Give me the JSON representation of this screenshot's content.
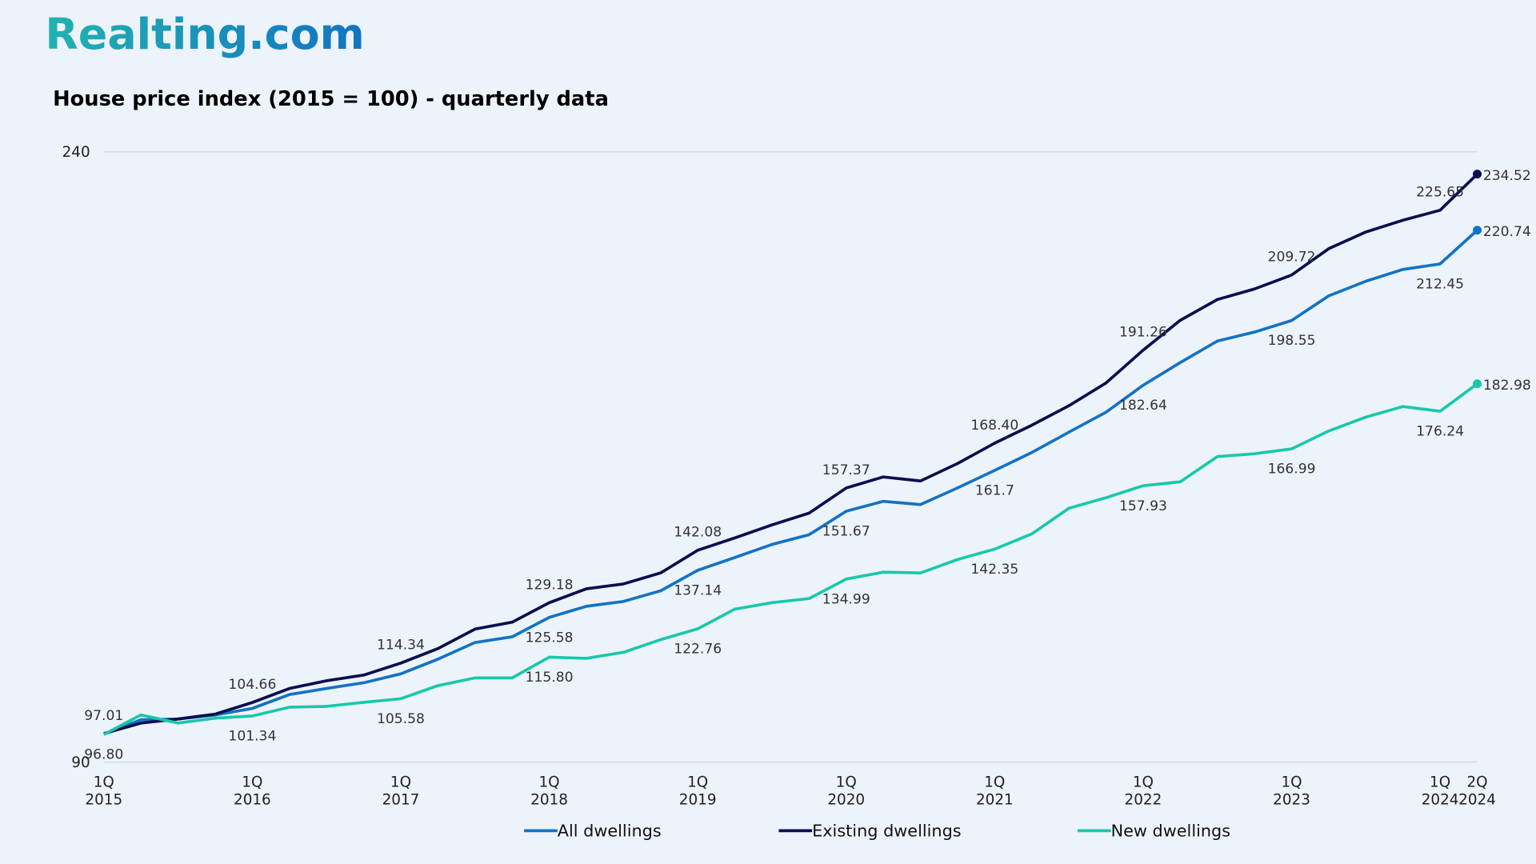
{
  "brand": "Realting.com",
  "chart_data": {
    "type": "line",
    "title": "House price index (2015 = 100) - quarterly data",
    "categories": [
      "1Q\n2015",
      null,
      null,
      null,
      "1Q\n2016",
      null,
      null,
      null,
      "1Q\n2017",
      null,
      null,
      null,
      "1Q\n2018",
      null,
      null,
      null,
      "1Q\n2019",
      null,
      null,
      null,
      "1Q\n2020",
      null,
      null,
      null,
      "1Q\n2021",
      null,
      null,
      null,
      "1Q\n2022",
      null,
      null,
      null,
      "1Q\n2023",
      null,
      null,
      null,
      "1Q\n2024",
      "2Q\n2024"
    ],
    "ylim": [
      90,
      240
    ],
    "yticks": [
      90,
      240
    ],
    "grid": true,
    "legend": "bottom",
    "series": [
      {
        "name": "All dwellings",
        "color": "#1273c4",
        "values": [
          96.9,
          100.4,
          100.6,
          101.6,
          103.2,
          106.6,
          108.1,
          109.5,
          111.7,
          115.3,
          119.4,
          120.8,
          125.58,
          128.3,
          129.5,
          132.1,
          137.14,
          140.3,
          143.5,
          145.9,
          151.67,
          154.1,
          153.3,
          157.4,
          161.7,
          166.1,
          171.1,
          176,
          182.64,
          188.2,
          193.5,
          195.7,
          198.55,
          204.6,
          208.2,
          211.1,
          212.45,
          220.74
        ],
        "value_labels": [
          null,
          null,
          null,
          null,
          null,
          null,
          null,
          null,
          null,
          null,
          null,
          null,
          "125.58",
          null,
          null,
          null,
          "137.14",
          null,
          null,
          null,
          "151.67",
          null,
          null,
          null,
          "161.7",
          null,
          null,
          null,
          "182.64",
          null,
          null,
          null,
          "198.55",
          null,
          null,
          null,
          "212.45",
          "220.74"
        ]
      },
      {
        "name": "Existing dwellings",
        "color": "#0a0f4f",
        "values": [
          97.01,
          99.6,
          100.6,
          101.8,
          104.66,
          108.1,
          110,
          111.4,
          114.34,
          117.9,
          122.7,
          124.4,
          129.18,
          132.6,
          133.8,
          136.5,
          142.08,
          145.1,
          148.3,
          151.2,
          157.37,
          160.1,
          159.1,
          163.4,
          168.4,
          172.8,
          177.6,
          183.2,
          191.26,
          198.6,
          203.7,
          206.3,
          209.72,
          216.2,
          220.3,
          223.2,
          225.65,
          234.52
        ],
        "value_labels": [
          "97.01",
          null,
          null,
          null,
          "104.66",
          null,
          null,
          null,
          "114.34",
          null,
          null,
          null,
          "129.18",
          null,
          null,
          null,
          "142.08",
          null,
          null,
          null,
          "157.37",
          null,
          null,
          null,
          "168.40",
          null,
          null,
          null,
          "191.26",
          null,
          null,
          null,
          "209.72",
          null,
          null,
          null,
          "225.65",
          "234.52"
        ]
      },
      {
        "name": "New dwellings",
        "color": "#19c8aa",
        "values": [
          96.8,
          101.6,
          99.6,
          100.8,
          101.34,
          103.5,
          103.7,
          104.7,
          105.58,
          108.8,
          110.7,
          110.7,
          115.8,
          115.5,
          117,
          120.1,
          122.76,
          127.6,
          129.2,
          130.2,
          134.99,
          136.7,
          136.5,
          139.8,
          142.35,
          146.1,
          152.4,
          155,
          157.93,
          158.9,
          165.1,
          165.8,
          166.99,
          171.4,
          174.8,
          177.4,
          176.24,
          182.98
        ],
        "value_labels": [
          "96.80",
          null,
          null,
          null,
          "101.34",
          null,
          null,
          null,
          "105.58",
          null,
          null,
          null,
          "115.80",
          null,
          null,
          null,
          "122.76",
          null,
          null,
          null,
          "134.99",
          null,
          null,
          null,
          "142.35",
          null,
          null,
          null,
          "157.93",
          null,
          null,
          null,
          "166.99",
          null,
          null,
          null,
          "176.24",
          "182.98"
        ]
      }
    ]
  }
}
